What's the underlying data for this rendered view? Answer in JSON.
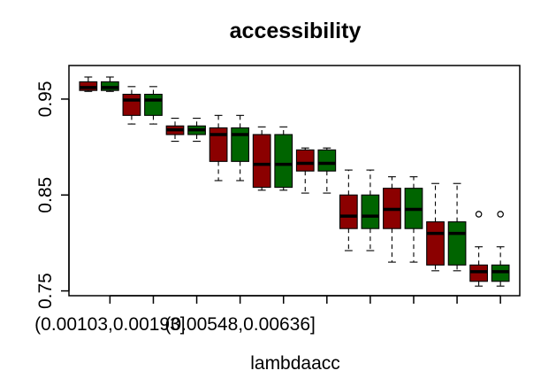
{
  "chart_data": {
    "type": "boxplot",
    "title": "accessibility",
    "xlabel": "lambdaacc",
    "ylabel": "",
    "ylim": [
      0.745,
      0.985
    ],
    "y_ticks": [
      "0.75",
      "0.85",
      "0.95"
    ],
    "x_tick_labels": [
      "(0.00103,0.00193]",
      "(0.00548,0.00636]"
    ],
    "grid": false,
    "legend": "none",
    "colors": {
      "group_a": "#8b0000",
      "group_b": "#006400"
    },
    "boxes": [
      {
        "group": "a",
        "whisker_low": 0.958,
        "q1": 0.959,
        "median": 0.962,
        "q3": 0.968,
        "whisker_high": 0.973
      },
      {
        "group": "b",
        "whisker_low": 0.958,
        "q1": 0.959,
        "median": 0.962,
        "q3": 0.968,
        "whisker_high": 0.973
      },
      {
        "group": "a",
        "whisker_low": 0.924,
        "q1": 0.933,
        "median": 0.949,
        "q3": 0.955,
        "whisker_high": 0.963
      },
      {
        "group": "b",
        "whisker_low": 0.924,
        "q1": 0.933,
        "median": 0.949,
        "q3": 0.955,
        "whisker_high": 0.963
      },
      {
        "group": "a",
        "whisker_low": 0.906,
        "q1": 0.913,
        "median": 0.918,
        "q3": 0.922,
        "whisker_high": 0.93
      },
      {
        "group": "b",
        "whisker_low": 0.906,
        "q1": 0.913,
        "median": 0.918,
        "q3": 0.922,
        "whisker_high": 0.93
      },
      {
        "group": "a",
        "whisker_low": 0.865,
        "q1": 0.885,
        "median": 0.913,
        "q3": 0.92,
        "whisker_high": 0.933
      },
      {
        "group": "b",
        "whisker_low": 0.865,
        "q1": 0.885,
        "median": 0.913,
        "q3": 0.92,
        "whisker_high": 0.933
      },
      {
        "group": "a",
        "whisker_low": 0.855,
        "q1": 0.858,
        "median": 0.882,
        "q3": 0.913,
        "whisker_high": 0.921
      },
      {
        "group": "b",
        "whisker_low": 0.855,
        "q1": 0.858,
        "median": 0.882,
        "q3": 0.913,
        "whisker_high": 0.921
      },
      {
        "group": "a",
        "whisker_low": 0.852,
        "q1": 0.875,
        "median": 0.883,
        "q3": 0.897,
        "whisker_high": 0.899
      },
      {
        "group": "b",
        "whisker_low": 0.852,
        "q1": 0.875,
        "median": 0.883,
        "q3": 0.897,
        "whisker_high": 0.899
      },
      {
        "group": "a",
        "whisker_low": 0.792,
        "q1": 0.815,
        "median": 0.828,
        "q3": 0.85,
        "whisker_high": 0.876
      },
      {
        "group": "b",
        "whisker_low": 0.792,
        "q1": 0.815,
        "median": 0.828,
        "q3": 0.85,
        "whisker_high": 0.876
      },
      {
        "group": "a",
        "whisker_low": 0.78,
        "q1": 0.815,
        "median": 0.835,
        "q3": 0.857,
        "whisker_high": 0.869
      },
      {
        "group": "b",
        "whisker_low": 0.78,
        "q1": 0.815,
        "median": 0.835,
        "q3": 0.857,
        "whisker_high": 0.869
      },
      {
        "group": "a",
        "whisker_low": 0.771,
        "q1": 0.777,
        "median": 0.81,
        "q3": 0.822,
        "whisker_high": 0.862
      },
      {
        "group": "b",
        "whisker_low": 0.771,
        "q1": 0.777,
        "median": 0.81,
        "q3": 0.822,
        "whisker_high": 0.862
      },
      {
        "group": "a",
        "whisker_low": 0.755,
        "q1": 0.76,
        "median": 0.77,
        "q3": 0.777,
        "whisker_high": 0.796,
        "outliers": [
          0.83
        ]
      },
      {
        "group": "b",
        "whisker_low": 0.755,
        "q1": 0.76,
        "median": 0.77,
        "q3": 0.777,
        "whisker_high": 0.796,
        "outliers": [
          0.83
        ]
      }
    ]
  }
}
